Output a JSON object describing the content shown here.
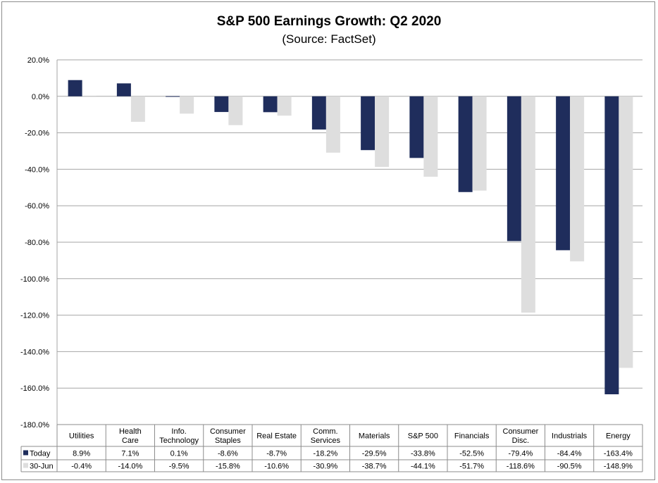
{
  "chart_data": {
    "type": "bar",
    "title": "S&P 500 Earnings Growth: Q2 2020",
    "subtitle": "(Source: FactSet)",
    "categories": [
      [
        "Utilities"
      ],
      [
        "Health",
        "Care"
      ],
      [
        "Info.",
        "Technology"
      ],
      [
        "Consumer",
        "Staples"
      ],
      [
        "Real Estate"
      ],
      [
        "Comm.",
        "Services"
      ],
      [
        "Materials"
      ],
      [
        "S&P 500"
      ],
      [
        "Financials"
      ],
      [
        "Consumer",
        "Disc."
      ],
      [
        "Industrials"
      ],
      [
        "Energy"
      ]
    ],
    "series": [
      {
        "name": "Today",
        "color": "#1f2d5c",
        "values": [
          8.9,
          7.1,
          0.1,
          -8.6,
          -8.7,
          -18.2,
          -29.5,
          -33.8,
          -52.5,
          -79.4,
          -84.4,
          -163.4
        ],
        "labels": [
          "8.9%",
          "7.1%",
          "0.1%",
          "-8.6%",
          "-8.7%",
          "-18.2%",
          "-29.5%",
          "-33.8%",
          "-52.5%",
          "-79.4%",
          "-84.4%",
          "-163.4%"
        ]
      },
      {
        "name": "30-Jun",
        "color": "#dedede",
        "values": [
          -0.4,
          -14.0,
          -9.5,
          -15.8,
          -10.6,
          -30.9,
          -38.7,
          -44.1,
          -51.7,
          -118.6,
          -90.5,
          -148.9
        ],
        "labels": [
          "-0.4%",
          "-14.0%",
          "-9.5%",
          "-15.8%",
          "-10.6%",
          "-30.9%",
          "-38.7%",
          "-44.1%",
          "-51.7%",
          "-118.6%",
          "-90.5%",
          "-148.9%"
        ]
      }
    ],
    "y_ticks": [
      "20.0%",
      "0.0%",
      "-20.0%",
      "-40.0%",
      "-60.0%",
      "-80.0%",
      "-100.0%",
      "-120.0%",
      "-140.0%",
      "-160.0%",
      "-180.0%"
    ],
    "ylim": [
      -180,
      20
    ],
    "grid": true,
    "legend": "data-table"
  }
}
